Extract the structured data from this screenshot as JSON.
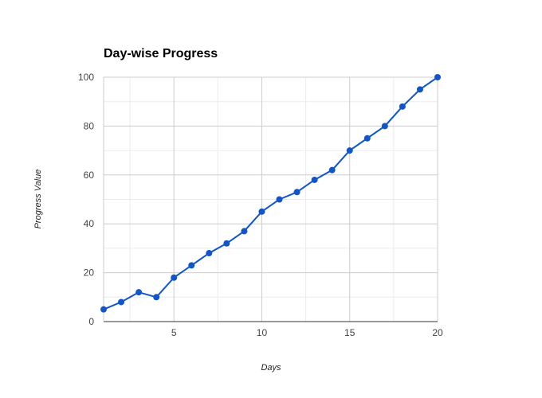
{
  "chart_data": {
    "type": "line",
    "title": "Day-wise Progress",
    "xlabel": "Days",
    "ylabel": "Progress Value",
    "xlim": [
      1,
      20
    ],
    "ylim": [
      0,
      100
    ],
    "x_ticks": [
      5,
      10,
      15,
      20
    ],
    "y_ticks": [
      0,
      20,
      40,
      60,
      80,
      100
    ],
    "grid": true,
    "legend": "none",
    "series": [
      {
        "color": "#1155cc",
        "x": [
          1,
          2,
          3,
          4,
          5,
          6,
          7,
          8,
          9,
          10,
          11,
          12,
          13,
          14,
          15,
          16,
          17,
          18,
          19,
          20
        ],
        "values": [
          5,
          8,
          12,
          10,
          18,
          23,
          28,
          32,
          37,
          45,
          50,
          53,
          58,
          62,
          70,
          75,
          80,
          88,
          95,
          100
        ]
      }
    ]
  }
}
